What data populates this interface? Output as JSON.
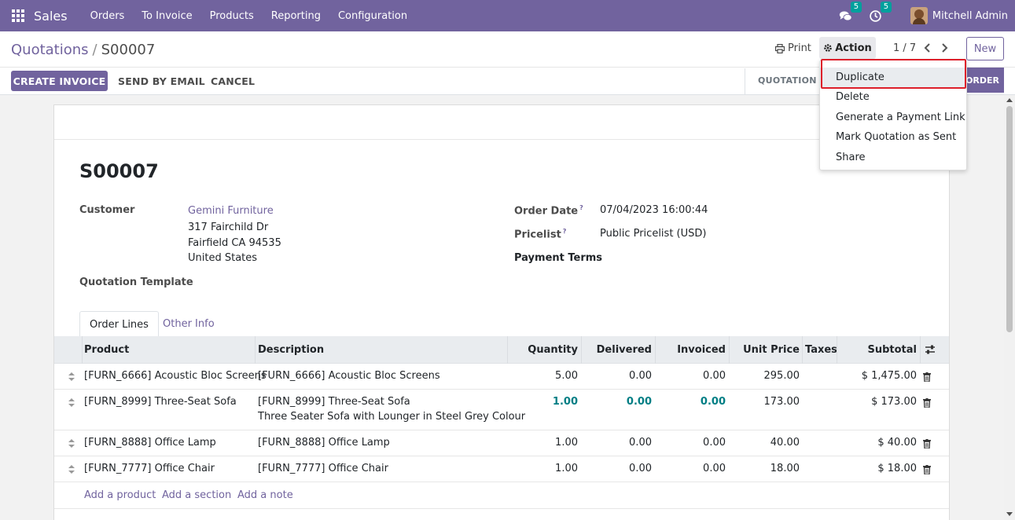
{
  "navbar": {
    "brand": "Sales",
    "menu": [
      "Orders",
      "To Invoice",
      "Products",
      "Reporting",
      "Configuration"
    ],
    "messages_count": "5",
    "activities_count": "5",
    "user": "Mitchell Admin",
    "color": "#71639e"
  },
  "control": {
    "breadcrumb_parent": "Quotations",
    "breadcrumb_separator": "/",
    "breadcrumb_current": "S00007",
    "print_label": "Print",
    "action_label": "Action",
    "pager": "1 / 7",
    "new_label": "New",
    "buttons": {
      "create_invoice": "CREATE INVOICE",
      "send_by_email": "SEND BY EMAIL",
      "cancel": "CANCEL"
    },
    "status_quotation": "QUOTATION",
    "status_order": "ORDER"
  },
  "action_menu": {
    "items": [
      "Duplicate",
      "Delete",
      "Generate a Payment Link",
      "Mark Quotation as Sent",
      "Share"
    ]
  },
  "form": {
    "title": "S00007",
    "customer_label": "Customer",
    "customer_name": "Gemini Furniture",
    "customer_address": [
      "317 Fairchild Dr",
      "Fairfield CA 94535",
      "United States"
    ],
    "quotation_template_label": "Quotation Template",
    "order_date_label": "Order Date",
    "order_date": "07/04/2023 16:00:44",
    "pricelist_label": "Pricelist",
    "pricelist": "Public Pricelist (USD)",
    "payment_terms_label": "Payment Terms",
    "help_mark": "?"
  },
  "tabs": [
    "Order Lines",
    "Other Info"
  ],
  "table": {
    "headers": [
      "Product",
      "Description",
      "Quantity",
      "Delivered",
      "Invoiced",
      "Unit Price",
      "Taxes",
      "Subtotal"
    ],
    "rows": [
      {
        "product": "[FURN_6666] Acoustic Bloc Screens",
        "description": "[FURN_6666] Acoustic Bloc Screens",
        "description2": "",
        "quantity": "5.00",
        "delivered": "0.00",
        "invoiced": "0.00",
        "unit_price": "295.00",
        "subtotal": "$ 1,475.00"
      },
      {
        "product": "[FURN_8999] Three-Seat Sofa",
        "description": "[FURN_8999] Three-Seat Sofa",
        "description2": "Three Seater Sofa with Lounger in Steel Grey Colour",
        "quantity": "1.00",
        "delivered": "0.00",
        "invoiced": "0.00",
        "unit_price": "173.00",
        "subtotal": "$ 173.00"
      },
      {
        "product": "[FURN_8888] Office Lamp",
        "description": "[FURN_8888] Office Lamp",
        "description2": "",
        "quantity": "1.00",
        "delivered": "0.00",
        "invoiced": "0.00",
        "unit_price": "40.00",
        "subtotal": "$ 40.00"
      },
      {
        "product": "[FURN_7777] Office Chair",
        "description": "[FURN_7777] Office Chair",
        "description2": "",
        "quantity": "1.00",
        "delivered": "0.00",
        "invoiced": "0.00",
        "unit_price": "18.00",
        "subtotal": "$ 18.00"
      }
    ],
    "add_links": [
      "Add a product",
      "Add a section",
      "Add a note"
    ]
  }
}
